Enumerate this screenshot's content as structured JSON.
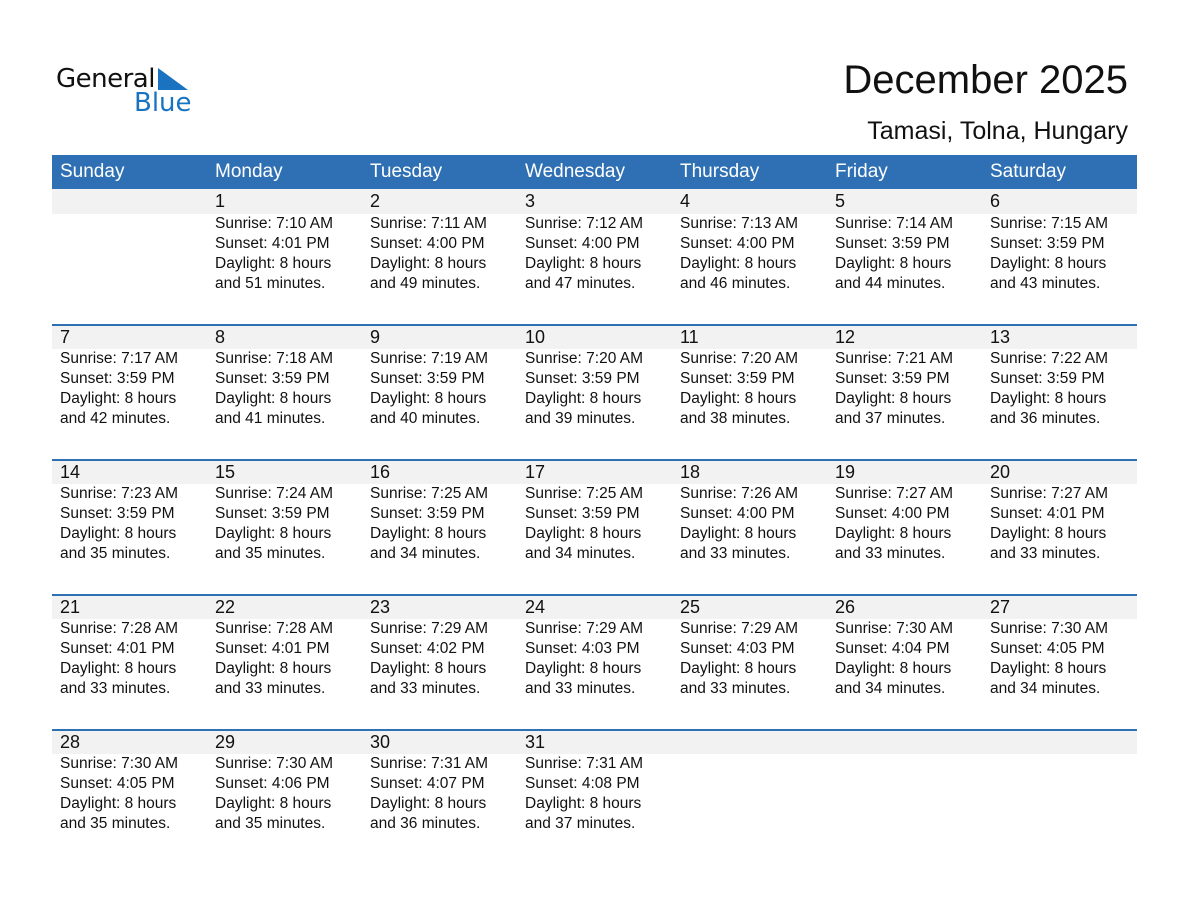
{
  "logo": {
    "line1": "General",
    "line2": "Blue",
    "accent": "#1a73c0"
  },
  "title": "December 2025",
  "location": "Tamasi, Tolna, Hungary",
  "header_color": "#2e70b3",
  "weekdays": [
    "Sunday",
    "Monday",
    "Tuesday",
    "Wednesday",
    "Thursday",
    "Friday",
    "Saturday"
  ],
  "weeks": [
    [
      null,
      {
        "day": "1",
        "sunrise": "Sunrise: 7:10 AM",
        "sunset": "Sunset: 4:01 PM",
        "daylight1": "Daylight: 8 hours",
        "daylight2": "and 51 minutes."
      },
      {
        "day": "2",
        "sunrise": "Sunrise: 7:11 AM",
        "sunset": "Sunset: 4:00 PM",
        "daylight1": "Daylight: 8 hours",
        "daylight2": "and 49 minutes."
      },
      {
        "day": "3",
        "sunrise": "Sunrise: 7:12 AM",
        "sunset": "Sunset: 4:00 PM",
        "daylight1": "Daylight: 8 hours",
        "daylight2": "and 47 minutes."
      },
      {
        "day": "4",
        "sunrise": "Sunrise: 7:13 AM",
        "sunset": "Sunset: 4:00 PM",
        "daylight1": "Daylight: 8 hours",
        "daylight2": "and 46 minutes."
      },
      {
        "day": "5",
        "sunrise": "Sunrise: 7:14 AM",
        "sunset": "Sunset: 3:59 PM",
        "daylight1": "Daylight: 8 hours",
        "daylight2": "and 44 minutes."
      },
      {
        "day": "6",
        "sunrise": "Sunrise: 7:15 AM",
        "sunset": "Sunset: 3:59 PM",
        "daylight1": "Daylight: 8 hours",
        "daylight2": "and 43 minutes."
      }
    ],
    [
      {
        "day": "7",
        "sunrise": "Sunrise: 7:17 AM",
        "sunset": "Sunset: 3:59 PM",
        "daylight1": "Daylight: 8 hours",
        "daylight2": "and 42 minutes."
      },
      {
        "day": "8",
        "sunrise": "Sunrise: 7:18 AM",
        "sunset": "Sunset: 3:59 PM",
        "daylight1": "Daylight: 8 hours",
        "daylight2": "and 41 minutes."
      },
      {
        "day": "9",
        "sunrise": "Sunrise: 7:19 AM",
        "sunset": "Sunset: 3:59 PM",
        "daylight1": "Daylight: 8 hours",
        "daylight2": "and 40 minutes."
      },
      {
        "day": "10",
        "sunrise": "Sunrise: 7:20 AM",
        "sunset": "Sunset: 3:59 PM",
        "daylight1": "Daylight: 8 hours",
        "daylight2": "and 39 minutes."
      },
      {
        "day": "11",
        "sunrise": "Sunrise: 7:20 AM",
        "sunset": "Sunset: 3:59 PM",
        "daylight1": "Daylight: 8 hours",
        "daylight2": "and 38 minutes."
      },
      {
        "day": "12",
        "sunrise": "Sunrise: 7:21 AM",
        "sunset": "Sunset: 3:59 PM",
        "daylight1": "Daylight: 8 hours",
        "daylight2": "and 37 minutes."
      },
      {
        "day": "13",
        "sunrise": "Sunrise: 7:22 AM",
        "sunset": "Sunset: 3:59 PM",
        "daylight1": "Daylight: 8 hours",
        "daylight2": "and 36 minutes."
      }
    ],
    [
      {
        "day": "14",
        "sunrise": "Sunrise: 7:23 AM",
        "sunset": "Sunset: 3:59 PM",
        "daylight1": "Daylight: 8 hours",
        "daylight2": "and 35 minutes."
      },
      {
        "day": "15",
        "sunrise": "Sunrise: 7:24 AM",
        "sunset": "Sunset: 3:59 PM",
        "daylight1": "Daylight: 8 hours",
        "daylight2": "and 35 minutes."
      },
      {
        "day": "16",
        "sunrise": "Sunrise: 7:25 AM",
        "sunset": "Sunset: 3:59 PM",
        "daylight1": "Daylight: 8 hours",
        "daylight2": "and 34 minutes."
      },
      {
        "day": "17",
        "sunrise": "Sunrise: 7:25 AM",
        "sunset": "Sunset: 3:59 PM",
        "daylight1": "Daylight: 8 hours",
        "daylight2": "and 34 minutes."
      },
      {
        "day": "18",
        "sunrise": "Sunrise: 7:26 AM",
        "sunset": "Sunset: 4:00 PM",
        "daylight1": "Daylight: 8 hours",
        "daylight2": "and 33 minutes."
      },
      {
        "day": "19",
        "sunrise": "Sunrise: 7:27 AM",
        "sunset": "Sunset: 4:00 PM",
        "daylight1": "Daylight: 8 hours",
        "daylight2": "and 33 minutes."
      },
      {
        "day": "20",
        "sunrise": "Sunrise: 7:27 AM",
        "sunset": "Sunset: 4:01 PM",
        "daylight1": "Daylight: 8 hours",
        "daylight2": "and 33 minutes."
      }
    ],
    [
      {
        "day": "21",
        "sunrise": "Sunrise: 7:28 AM",
        "sunset": "Sunset: 4:01 PM",
        "daylight1": "Daylight: 8 hours",
        "daylight2": "and 33 minutes."
      },
      {
        "day": "22",
        "sunrise": "Sunrise: 7:28 AM",
        "sunset": "Sunset: 4:01 PM",
        "daylight1": "Daylight: 8 hours",
        "daylight2": "and 33 minutes."
      },
      {
        "day": "23",
        "sunrise": "Sunrise: 7:29 AM",
        "sunset": "Sunset: 4:02 PM",
        "daylight1": "Daylight: 8 hours",
        "daylight2": "and 33 minutes."
      },
      {
        "day": "24",
        "sunrise": "Sunrise: 7:29 AM",
        "sunset": "Sunset: 4:03 PM",
        "daylight1": "Daylight: 8 hours",
        "daylight2": "and 33 minutes."
      },
      {
        "day": "25",
        "sunrise": "Sunrise: 7:29 AM",
        "sunset": "Sunset: 4:03 PM",
        "daylight1": "Daylight: 8 hours",
        "daylight2": "and 33 minutes."
      },
      {
        "day": "26",
        "sunrise": "Sunrise: 7:30 AM",
        "sunset": "Sunset: 4:04 PM",
        "daylight1": "Daylight: 8 hours",
        "daylight2": "and 34 minutes."
      },
      {
        "day": "27",
        "sunrise": "Sunrise: 7:30 AM",
        "sunset": "Sunset: 4:05 PM",
        "daylight1": "Daylight: 8 hours",
        "daylight2": "and 34 minutes."
      }
    ],
    [
      {
        "day": "28",
        "sunrise": "Sunrise: 7:30 AM",
        "sunset": "Sunset: 4:05 PM",
        "daylight1": "Daylight: 8 hours",
        "daylight2": "and 35 minutes."
      },
      {
        "day": "29",
        "sunrise": "Sunrise: 7:30 AM",
        "sunset": "Sunset: 4:06 PM",
        "daylight1": "Daylight: 8 hours",
        "daylight2": "and 35 minutes."
      },
      {
        "day": "30",
        "sunrise": "Sunrise: 7:31 AM",
        "sunset": "Sunset: 4:07 PM",
        "daylight1": "Daylight: 8 hours",
        "daylight2": "and 36 minutes."
      },
      {
        "day": "31",
        "sunrise": "Sunrise: 7:31 AM",
        "sunset": "Sunset: 4:08 PM",
        "daylight1": "Daylight: 8 hours",
        "daylight2": "and 37 minutes."
      },
      null,
      null,
      null
    ]
  ]
}
